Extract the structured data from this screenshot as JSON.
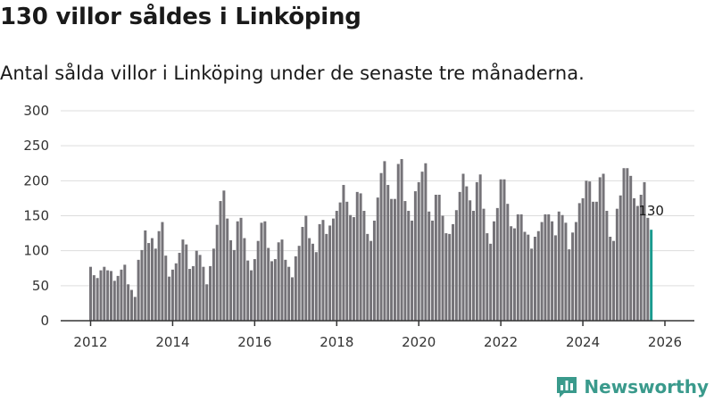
{
  "title": "130 villor såldes i Linköping",
  "subtitle": "Antal sålda villor i Linköping under de senaste tre månaderna.",
  "brand": {
    "name": "Newsworthy",
    "icon": "newsworthy-logo-icon"
  },
  "colors": {
    "bar": "#757378",
    "highlight": "#1a9a8e",
    "brand": "#3a9a8c"
  },
  "chart_data": {
    "type": "bar",
    "x_start": "2012-01",
    "interval": "month",
    "ylim": [
      0,
      300
    ],
    "yticks": [
      0,
      50,
      100,
      150,
      200,
      250,
      300
    ],
    "xticks": [
      "2012",
      "2014",
      "2016",
      "2018",
      "2020",
      "2022",
      "2024",
      "2026"
    ],
    "grid": true,
    "highlight_last": true,
    "last_label": "130",
    "values": [
      77,
      65,
      61,
      72,
      77,
      72,
      71,
      57,
      64,
      73,
      80,
      52,
      44,
      34,
      87,
      101,
      129,
      111,
      118,
      103,
      128,
      141,
      93,
      63,
      73,
      82,
      97,
      116,
      109,
      74,
      78,
      100,
      94,
      77,
      52,
      78,
      103,
      137,
      171,
      186,
      146,
      115,
      101,
      142,
      147,
      118,
      86,
      72,
      88,
      114,
      140,
      142,
      104,
      85,
      88,
      112,
      116,
      87,
      77,
      62,
      92,
      107,
      134,
      150,
      118,
      110,
      98,
      138,
      144,
      124,
      136,
      146,
      157,
      169,
      194,
      170,
      151,
      148,
      184,
      182,
      157,
      124,
      114,
      143,
      176,
      211,
      228,
      194,
      174,
      174,
      224,
      231,
      171,
      157,
      143,
      185,
      198,
      213,
      225,
      156,
      143,
      180,
      180,
      150,
      125,
      124,
      138,
      158,
      184,
      210,
      192,
      172,
      157,
      198,
      209,
      160,
      125,
      110,
      142,
      161,
      202,
      202,
      167,
      135,
      132,
      152,
      152,
      127,
      123,
      103,
      120,
      128,
      141,
      152,
      152,
      142,
      122,
      156,
      151,
      140,
      102,
      126,
      141,
      168,
      175,
      200,
      199,
      170,
      170,
      205,
      210,
      157,
      120,
      114,
      160,
      179,
      218,
      218,
      207,
      175,
      164,
      180,
      198,
      147,
      130
    ]
  }
}
